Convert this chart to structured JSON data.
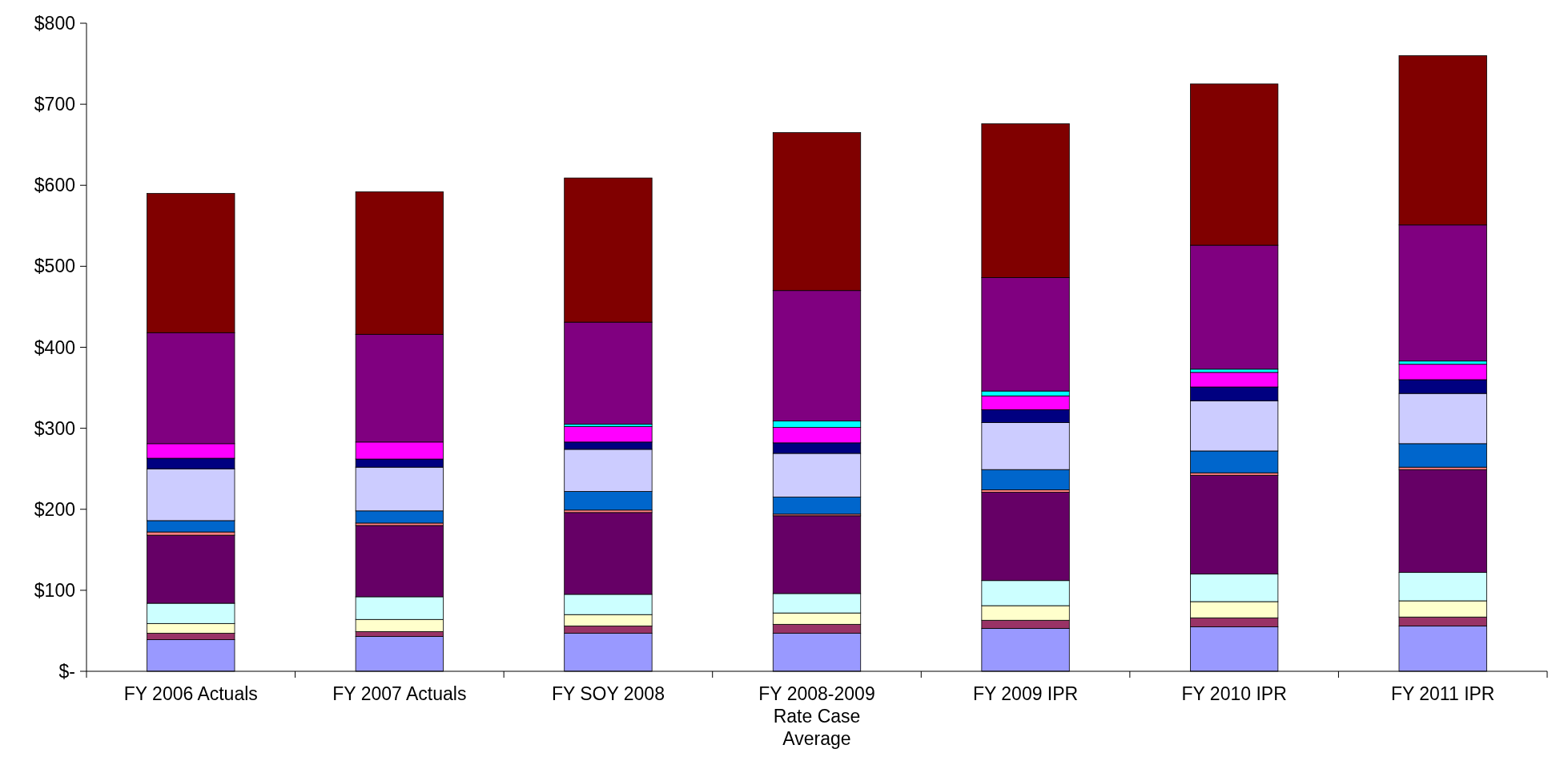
{
  "chart_data": {
    "type": "bar",
    "stacked": true,
    "categories": [
      "FY 2006 Actuals",
      "FY 2007 Actuals",
      "FY SOY 2008",
      "FY 2008-2009 Rate Case Average",
      "FY 2009 IPR",
      "FY 2010 IPR",
      "FY 2011 IPR"
    ],
    "series": [
      {
        "color": "#9999ff",
        "values": [
          39,
          43,
          47,
          47,
          53,
          55,
          56
        ]
      },
      {
        "color": "#993366",
        "values": [
          8,
          6,
          9,
          11,
          10,
          11,
          11
        ]
      },
      {
        "color": "#ffffcc",
        "values": [
          12,
          15,
          14,
          14,
          18,
          20,
          20
        ]
      },
      {
        "color": "#ccffff",
        "values": [
          25,
          28,
          25,
          24,
          31,
          34,
          35
        ]
      },
      {
        "color": "#660066",
        "values": [
          84,
          88,
          101,
          96,
          109,
          122,
          127
        ]
      },
      {
        "color": "#ff8080",
        "values": [
          4,
          3,
          3,
          2,
          3,
          3,
          3
        ]
      },
      {
        "color": "#0066cc",
        "values": [
          14,
          15,
          23,
          21,
          25,
          27,
          29
        ]
      },
      {
        "color": "#ccccff",
        "values": [
          64,
          54,
          52,
          54,
          58,
          62,
          62
        ]
      },
      {
        "color": "#000080",
        "values": [
          13,
          10,
          9,
          13,
          16,
          17,
          17
        ]
      },
      {
        "color": "#ff00ff",
        "values": [
          18,
          21,
          19,
          19,
          17,
          18,
          19
        ]
      },
      {
        "color": "#00ffff",
        "values": [
          0,
          null,
          3,
          8,
          6,
          4,
          4
        ]
      },
      {
        "color": "#800080",
        "values": [
          137,
          133,
          126,
          161,
          140,
          153,
          168
        ]
      },
      {
        "color": "#800000",
        "values": [
          172,
          176,
          178,
          195,
          190,
          199,
          209
        ]
      }
    ],
    "ylim": [
      0,
      800
    ],
    "yticks": [
      {
        "value": 0,
        "label": "$-"
      },
      {
        "value": 100,
        "label": "$100"
      },
      {
        "value": 200,
        "label": "$200"
      },
      {
        "value": 300,
        "label": "$300"
      },
      {
        "value": 400,
        "label": "$400"
      },
      {
        "value": 500,
        "label": "$500"
      },
      {
        "value": 600,
        "label": "$600"
      },
      {
        "value": 700,
        "label": "$700"
      },
      {
        "value": 800,
        "label": "$800"
      }
    ],
    "grid": false
  }
}
